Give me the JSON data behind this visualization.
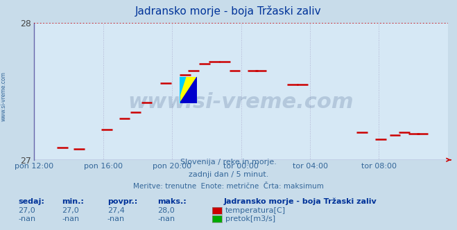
{
  "title": "Jadransko morje - boja Tržaski zaliv",
  "title_color": "#003399",
  "fig_bg_color": "#c8dcea",
  "plot_bg_color": "#d6e8f5",
  "ylim": [
    27.0,
    28.0
  ],
  "yticks": [
    27,
    28
  ],
  "grid_color": "#aaaacc",
  "x_tick_labels": [
    "pon 12:00",
    "pon 16:00",
    "pon 20:00",
    "tor 00:00",
    "tor 04:00",
    "tor 08:00"
  ],
  "x_tick_positions": [
    0.0,
    0.1667,
    0.3333,
    0.5,
    0.6667,
    0.8333
  ],
  "x_max": 1.0,
  "watermark": "www.si-vreme.com",
  "watermark_color": "#1a3a6e",
  "watermark_alpha": 0.18,
  "side_label": "www.si-vreme.com",
  "side_label_color": "#336699",
  "dotted_line_y": 28.0,
  "dotted_line_color": "#cc0000",
  "temp_line_color": "#cc0000",
  "temp_points_x": [
    0.068,
    0.108,
    0.175,
    0.218,
    0.245,
    0.272,
    0.318,
    0.365,
    0.385,
    0.412,
    0.435,
    0.46,
    0.485,
    0.528,
    0.548,
    0.625,
    0.648,
    0.792,
    0.838,
    0.872,
    0.895,
    0.918,
    0.938
  ],
  "temp_points_y": [
    27.09,
    27.08,
    27.22,
    27.3,
    27.35,
    27.42,
    27.56,
    27.62,
    27.65,
    27.7,
    27.72,
    27.72,
    27.65,
    27.65,
    27.65,
    27.55,
    27.55,
    27.2,
    27.15,
    27.18,
    27.2,
    27.19,
    27.19
  ],
  "baseline_color": "#6666aa",
  "arrow_color": "#cc0000",
  "info_color": "#336699",
  "info_line1": "Slovenija / reke in morje.",
  "info_line2": "zadnji dan / 5 minut.",
  "info_line3": "Meritve: trenutne  Enote: metrične  Črta: maksimum",
  "table_headers": [
    "sedaj:",
    "min.:",
    "povpr.:",
    "maks.:"
  ],
  "table_header_color": "#003399",
  "table_values_row1": [
    "27,0",
    "27,0",
    "27,4",
    "28,0"
  ],
  "table_values_row2": [
    "-nan",
    "-nan",
    "-nan",
    "-nan"
  ],
  "table_value_color": "#336699",
  "legend_title": "Jadransko morje - boja Tržaski zaliv",
  "legend_title_color": "#003399",
  "legend_entries": [
    "temperatura[C]",
    "pretok[m3/s]"
  ],
  "legend_colors": [
    "#cc0000",
    "#00aa00"
  ],
  "logo_colors": [
    "#ffff00",
    "#0000cc",
    "#00ccff"
  ],
  "tick_color": "#336699",
  "ylabel_color": "#444444"
}
